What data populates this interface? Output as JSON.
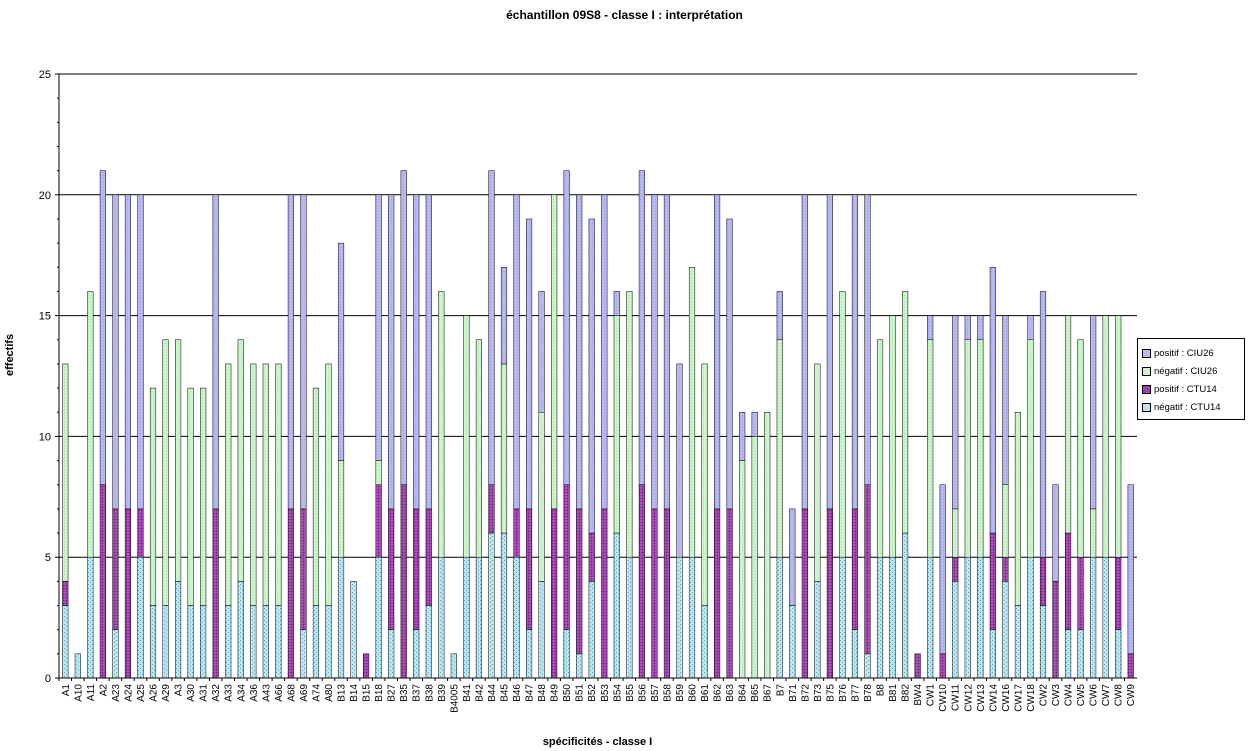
{
  "chart_data": {
    "type": "bar",
    "stacked": true,
    "title": "échantillon 09S8 - classe  I : interprétation",
    "xlabel": "spécificités - classe I",
    "ylabel": "effectifs",
    "ylim": [
      0,
      25
    ],
    "yticks": [
      0,
      5,
      10,
      15,
      20,
      25
    ],
    "grid": true,
    "legend_position": "right",
    "categories": [
      "A1",
      "A10",
      "A11",
      "A2",
      "A23",
      "A24",
      "A25",
      "A26",
      "A29",
      "A3",
      "A30",
      "A31",
      "A32",
      "A33",
      "A34",
      "A36",
      "A43",
      "A66",
      "A68",
      "A69",
      "A74",
      "A80",
      "B13",
      "B14",
      "B15",
      "B18",
      "B27",
      "B35",
      "B37",
      "B38",
      "B39",
      "B4005",
      "B41",
      "B42",
      "B44",
      "B45",
      "B46",
      "B47",
      "B48",
      "B49",
      "B50",
      "B51",
      "B52",
      "B53",
      "B54",
      "B55",
      "B56",
      "B57",
      "B58",
      "B59",
      "B60",
      "B61",
      "B62",
      "B63",
      "B64",
      "B65",
      "B67",
      "B7",
      "B71",
      "B72",
      "B73",
      "B75",
      "B76",
      "B77",
      "B78",
      "B8",
      "B81",
      "B82",
      "BW4",
      "CW1",
      "CW10",
      "CW11",
      "CW12",
      "CW13",
      "CW14",
      "CW16",
      "CW17",
      "CW18",
      "CW2",
      "CW3",
      "CW4",
      "CW5",
      "CW6",
      "CW7",
      "CW8",
      "CW9"
    ],
    "series": [
      {
        "name": "négatif : CTU14",
        "color": "#bfe6ef",
        "values": [
          3,
          1,
          5,
          0,
          2,
          0,
          5,
          3,
          3,
          4,
          3,
          3,
          0,
          3,
          4,
          3,
          3,
          3,
          0,
          2,
          3,
          3,
          5,
          4,
          0,
          5,
          2,
          0,
          2,
          3,
          5,
          1,
          5,
          5,
          6,
          6,
          5,
          2,
          4,
          0,
          2,
          1,
          4,
          0,
          6,
          5,
          0,
          0,
          0,
          5,
          5,
          3,
          0,
          0,
          0,
          0,
          0,
          5,
          3,
          0,
          4,
          0,
          5,
          2,
          1,
          5,
          5,
          6,
          0,
          5,
          0,
          4,
          5,
          5,
          2,
          4,
          3,
          5,
          3,
          0,
          2,
          2,
          5,
          5,
          2,
          0
        ]
      },
      {
        "name": "positif : CTU14",
        "color": "#a040b0",
        "values": [
          1,
          0,
          0,
          8,
          5,
          7,
          2,
          0,
          0,
          0,
          0,
          0,
          7,
          0,
          0,
          0,
          0,
          0,
          7,
          5,
          0,
          0,
          0,
          0,
          1,
          3,
          5,
          8,
          5,
          4,
          0,
          0,
          0,
          0,
          2,
          0,
          2,
          5,
          0,
          7,
          6,
          6,
          2,
          7,
          0,
          0,
          8,
          7,
          7,
          0,
          0,
          0,
          7,
          7,
          0,
          0,
          0,
          0,
          0,
          7,
          0,
          7,
          0,
          5,
          7,
          0,
          0,
          0,
          1,
          0,
          1,
          1,
          0,
          0,
          4,
          1,
          0,
          0,
          2,
          4,
          4,
          3,
          0,
          0,
          3,
          1
        ]
      },
      {
        "name": "négatif : CIU26",
        "color": "#ccf5cc",
        "values": [
          9,
          0,
          11,
          0,
          0,
          0,
          0,
          9,
          11,
          10,
          9,
          9,
          0,
          10,
          10,
          10,
          10,
          10,
          0,
          0,
          9,
          10,
          4,
          0,
          0,
          1,
          0,
          0,
          0,
          0,
          11,
          0,
          10,
          9,
          0,
          7,
          0,
          0,
          7,
          13,
          0,
          0,
          0,
          0,
          9,
          11,
          0,
          0,
          0,
          0,
          12,
          10,
          0,
          0,
          9,
          10,
          11,
          9,
          0,
          0,
          9,
          0,
          11,
          0,
          0,
          9,
          10,
          10,
          0,
          9,
          0,
          2,
          9,
          9,
          0,
          3,
          8,
          9,
          0,
          0,
          9,
          9,
          2,
          10,
          10,
          0
        ]
      },
      {
        "name": "positif : CIU26",
        "color": "#b8b8f5",
        "values": [
          0,
          0,
          0,
          13,
          13,
          13,
          13,
          0,
          0,
          0,
          0,
          0,
          13,
          0,
          0,
          0,
          0,
          0,
          13,
          13,
          0,
          0,
          9,
          0,
          0,
          11,
          13,
          13,
          13,
          13,
          0,
          0,
          0,
          0,
          13,
          4,
          13,
          12,
          5,
          0,
          13,
          13,
          13,
          13,
          1,
          0,
          13,
          13,
          13,
          8,
          0,
          0,
          13,
          12,
          2,
          1,
          0,
          2,
          4,
          13,
          0,
          13,
          0,
          13,
          12,
          0,
          0,
          0,
          0,
          1,
          7,
          8,
          1,
          1,
          11,
          7,
          0,
          1,
          11,
          4,
          0,
          0,
          8,
          0,
          0,
          7
        ]
      }
    ]
  }
}
